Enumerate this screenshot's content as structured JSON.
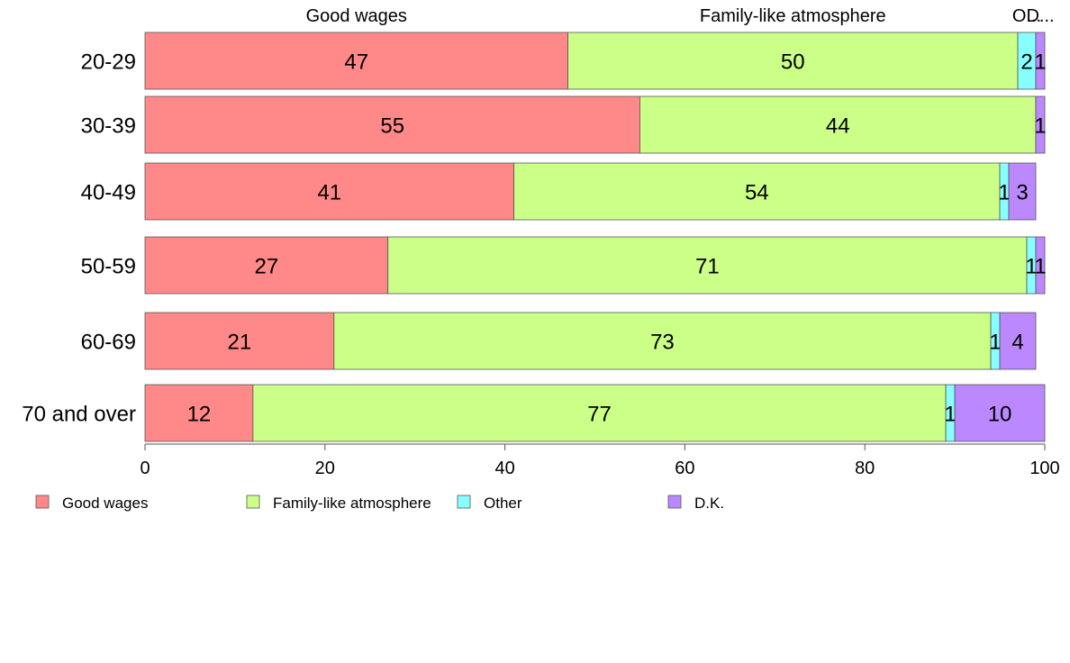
{
  "chart_data": {
    "type": "bar",
    "orientation": "horizontal",
    "stacked": true,
    "categories": [
      "20-29",
      "30-39",
      "40-49",
      "50-59",
      "60-69",
      "70 and over"
    ],
    "series": [
      {
        "name": "Good wages",
        "color": "#ff8888",
        "values": [
          47,
          55,
          41,
          27,
          21,
          12
        ]
      },
      {
        "name": "Family-like atmosphere",
        "color": "#ccff88",
        "values": [
          50,
          44,
          54,
          71,
          73,
          77
        ]
      },
      {
        "name": "Other",
        "color": "#88ffff",
        "values": [
          2,
          0,
          1,
          1,
          1,
          1
        ]
      },
      {
        "name": "D.K.",
        "color": "#bb88ff",
        "values": [
          1,
          1,
          3,
          1,
          4,
          10
        ]
      }
    ],
    "segment_labels": [
      [
        "47",
        "50",
        "2",
        "1"
      ],
      [
        "55",
        "44",
        "",
        "1"
      ],
      [
        "41",
        "54",
        "1",
        "3"
      ],
      [
        "27",
        "71",
        "1",
        "1"
      ],
      [
        "21",
        "73",
        "1",
        "4"
      ],
      [
        "12",
        "77",
        "1",
        "10"
      ]
    ],
    "top_labels": [
      "Good wages",
      "Family-like atmosphere",
      "O...",
      "D..."
    ],
    "xlim": [
      0,
      100
    ],
    "xticks": [
      "0",
      "20",
      "40",
      "60",
      "80",
      "100"
    ],
    "legend_position": "bottom-left",
    "grid": false
  }
}
